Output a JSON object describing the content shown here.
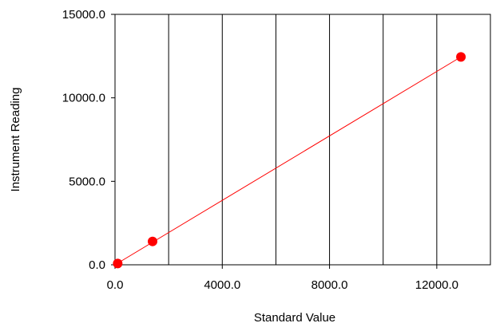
{
  "chart_data": {
    "type": "scatter",
    "title": "",
    "xlabel": "Standard Value",
    "ylabel": "Instrument Reading",
    "xlim": [
      0,
      14000
    ],
    "ylim": [
      0,
      15000
    ],
    "x_ticks": [
      0,
      4000,
      8000,
      12000
    ],
    "x_tick_labels": [
      "0.0",
      "4000.0",
      "8000.0",
      "12000.0"
    ],
    "y_ticks": [
      0,
      5000,
      10000,
      15000
    ],
    "y_tick_labels": [
      "0.0",
      "5000.0",
      "10000.0",
      "15000.0"
    ],
    "vertical_gridlines": [
      0,
      2000,
      4000,
      6000,
      8000,
      10000,
      12000,
      14000
    ],
    "horizontal_gridlines": [],
    "grid": true,
    "series": [
      {
        "points": [
          {
            "x": 100,
            "y": 80
          },
          {
            "x": 1400,
            "y": 1400
          },
          {
            "x": 12900,
            "y": 12450
          }
        ],
        "color": "#ff0000",
        "marker": "circle"
      }
    ],
    "fit_line": {
      "from": {
        "x": 0,
        "y": 0
      },
      "to": {
        "x": 12900,
        "y": 12450
      },
      "color": "#ff0000"
    },
    "legend": "none"
  }
}
